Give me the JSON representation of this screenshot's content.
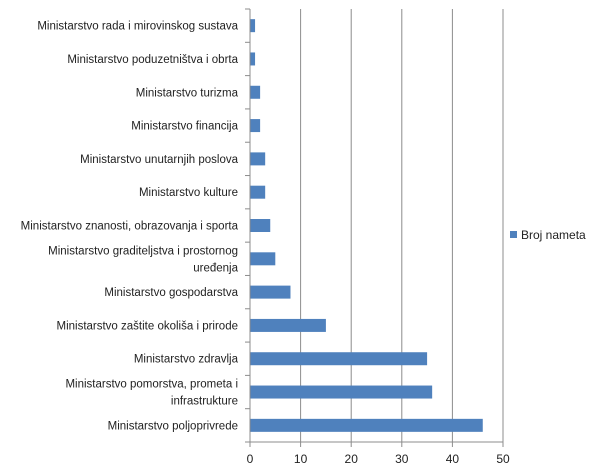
{
  "chart_data": {
    "type": "bar",
    "orientation": "horizontal",
    "categories": [
      [
        "Ministarstvo rada i mirovinskog sustava"
      ],
      [
        "Ministarstvo poduzetništva i obrta"
      ],
      [
        "Ministarstvo turizma"
      ],
      [
        "Ministarstvo financija"
      ],
      [
        "Ministarstvo unutarnjih poslova"
      ],
      [
        "Ministarstvo kulture"
      ],
      [
        "Ministarstvo znanosti, obrazovanja i sporta"
      ],
      [
        "Ministarstvo graditeljstva i prostornog",
        "uređenja"
      ],
      [
        "Ministarstvo gospodarstva"
      ],
      [
        "Ministarstvo zaštite okoliša i prirode"
      ],
      [
        "Ministarstvo zdravlja"
      ],
      [
        "Ministarstvo pomorstva, prometa i",
        "infrastrukture"
      ],
      [
        "Ministarstvo poljoprivrede"
      ]
    ],
    "series": [
      {
        "name": "Broj nameta",
        "values": [
          1,
          1,
          2,
          2,
          3,
          3,
          4,
          5,
          8,
          15,
          35,
          36,
          46
        ]
      }
    ],
    "xlim": [
      0,
      50
    ],
    "xticks": [
      0,
      10,
      20,
      30,
      40,
      50
    ],
    "grid": "vertical",
    "legend": "right",
    "bar_color": "#4F81BD"
  }
}
